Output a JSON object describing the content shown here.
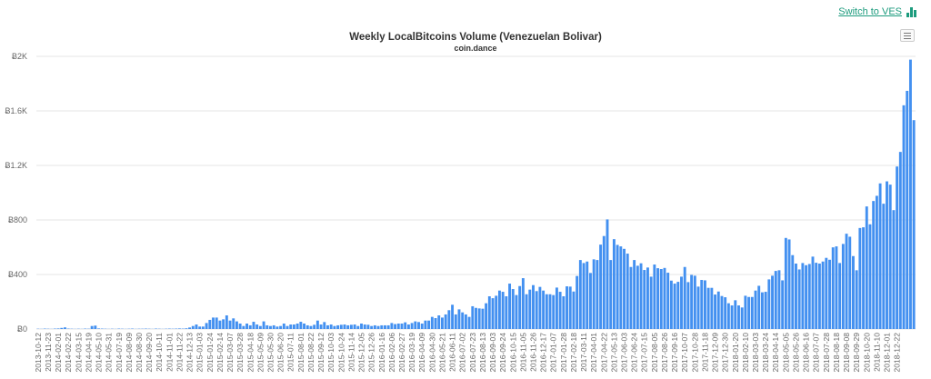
{
  "switch_link": {
    "label": "Switch to VES",
    "icon": "bar-chart-icon"
  },
  "menu_icon": "hamburger-menu-icon",
  "colors": {
    "bar": "#4390f0",
    "grid": "#e6e6e6",
    "link": "#1c9b7d"
  },
  "chart_data": {
    "type": "bar",
    "title": "Weekly LocalBitcoins Volume (Venezuelan Bolivar)",
    "subtitle": "coin.dance",
    "xlabel": "",
    "ylabel": "",
    "ylim": [
      0,
      2000
    ],
    "yticks": [
      0,
      400,
      800,
      1200,
      1600,
      2000
    ],
    "ytick_labels": [
      "Ƀ0",
      "Ƀ400",
      "Ƀ800",
      "Ƀ1.2K",
      "Ƀ1.6K",
      "Ƀ2K"
    ],
    "grid": true,
    "legend": "none",
    "tick_every": 3,
    "tick_labels": [
      "2013-10-12",
      "2013-11-23",
      "2014-02-01",
      "2014-02-22",
      "2014-03-15",
      "2014-04-19",
      "2014-05-10",
      "2014-05-31",
      "2014-07-19",
      "2014-08-09",
      "2014-08-30",
      "2014-09-20",
      "2014-10-11",
      "2014-11-01",
      "2014-11-22",
      "2014-12-13",
      "2015-01-03",
      "2015-01-24",
      "2015-02-14",
      "2015-03-07",
      "2015-03-28",
      "2015-04-18",
      "2015-05-09",
      "2015-05-30",
      "2015-06-20",
      "2015-07-11",
      "2015-08-01",
      "2015-08-22",
      "2015-09-12",
      "2015-10-03",
      "2015-10-24",
      "2015-11-14",
      "2015-12-05",
      "2015-12-26",
      "2016-01-16",
      "2016-02-06",
      "2016-02-27",
      "2016-03-19",
      "2016-04-09",
      "2016-04-30",
      "2016-05-21",
      "2016-06-11",
      "2016-07-02",
      "2016-07-23",
      "2016-08-13",
      "2016-09-03",
      "2016-09-24",
      "2016-10-15",
      "2016-11-05",
      "2016-11-26",
      "2016-12-17",
      "2017-01-07",
      "2017-01-28",
      "2017-02-18",
      "2017-03-11",
      "2017-04-01",
      "2017-04-22",
      "2017-05-13",
      "2017-06-03",
      "2017-06-24",
      "2017-07-15",
      "2017-08-05",
      "2017-08-26",
      "2017-09-16",
      "2017-10-07",
      "2017-10-28",
      "2017-11-18",
      "2017-12-09",
      "2017-12-30",
      "2018-01-20",
      "2018-02-10",
      "2018-03-03",
      "2018-03-24",
      "2018-04-14",
      "2018-05-05",
      "2018-05-26",
      "2018-06-16",
      "2018-07-07",
      "2018-07-28",
      "2018-08-18",
      "2018-09-08",
      "2018-09-29",
      "2018-10-20",
      "2018-11-10",
      "2018-12-01",
      "2018-12-22"
    ],
    "values": [
      2,
      1,
      3,
      2,
      1,
      3,
      4,
      8,
      12,
      3,
      2,
      1,
      2,
      1,
      3,
      2,
      22,
      25,
      4,
      3,
      2,
      1,
      2,
      1,
      3,
      2,
      1,
      2,
      3,
      1,
      2,
      2,
      3,
      2,
      1,
      3,
      2,
      1,
      2,
      3,
      2,
      3,
      4,
      3,
      5,
      11,
      22,
      33,
      18,
      18,
      44,
      67,
      84,
      84,
      62,
      71,
      100,
      62,
      78,
      56,
      40,
      22,
      40,
      27,
      53,
      33,
      22,
      56,
      27,
      22,
      27,
      18,
      22,
      40,
      22,
      33,
      33,
      40,
      53,
      40,
      27,
      22,
      31,
      62,
      33,
      51,
      27,
      33,
      22,
      27,
      31,
      33,
      27,
      31,
      33,
      22,
      40,
      33,
      31,
      22,
      27,
      22,
      27,
      27,
      27,
      44,
      36,
      40,
      40,
      49,
      33,
      44,
      56,
      51,
      40,
      62,
      62,
      89,
      80,
      100,
      84,
      107,
      138,
      178,
      107,
      144,
      122,
      107,
      89,
      167,
      155,
      151,
      149,
      189,
      240,
      226,
      244,
      282,
      273,
      240,
      333,
      293,
      249,
      315,
      373,
      255,
      289,
      322,
      278,
      309,
      282,
      255,
      255,
      249,
      304,
      273,
      240,
      313,
      311,
      275,
      389,
      506,
      484,
      495,
      411,
      511,
      506,
      619,
      682,
      804,
      506,
      659,
      617,
      606,
      588,
      553,
      455,
      506,
      464,
      482,
      433,
      451,
      384,
      473,
      446,
      440,
      448,
      413,
      355,
      333,
      346,
      384,
      455,
      344,
      397,
      391,
      311,
      360,
      357,
      302,
      302,
      253,
      275,
      242,
      233,
      189,
      173,
      211,
      173,
      158,
      244,
      235,
      235,
      282,
      317,
      269,
      273,
      364,
      391,
      426,
      431,
      357,
      668,
      657,
      542,
      480,
      437,
      484,
      468,
      477,
      531,
      486,
      480,
      495,
      522,
      508,
      599,
      606,
      484,
      624,
      699,
      677,
      535,
      431,
      741,
      746,
      899,
      768,
      939,
      977,
      1068,
      919,
      1083,
      1059,
      872,
      1192,
      1299,
      1641,
      1747,
      1976,
      1532
    ]
  }
}
